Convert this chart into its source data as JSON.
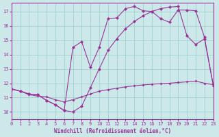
{
  "bg_color": "#cce8e8",
  "grid_color": "#99cccc",
  "line_color": "#993399",
  "xlabel": "Windchill (Refroidissement éolien,°C)",
  "xlim": [
    0,
    23
  ],
  "ylim": [
    9.5,
    17.6
  ],
  "yticks": [
    10,
    11,
    12,
    13,
    14,
    15,
    16,
    17
  ],
  "xticks": [
    0,
    1,
    2,
    3,
    4,
    5,
    6,
    7,
    8,
    9,
    10,
    11,
    12,
    13,
    14,
    15,
    16,
    17,
    18,
    19,
    20,
    21,
    22,
    23
  ],
  "line1_x": [
    0,
    1,
    2,
    3,
    4,
    5,
    6,
    7,
    8,
    9,
    10,
    11,
    12,
    13,
    14,
    15,
    16,
    17,
    18,
    19,
    20,
    21,
    22,
    23
  ],
  "line1_y": [
    11.6,
    11.45,
    11.2,
    11.1,
    11.05,
    10.85,
    10.7,
    10.85,
    11.05,
    11.25,
    11.45,
    11.55,
    11.65,
    11.75,
    11.82,
    11.88,
    11.93,
    11.97,
    12.0,
    12.05,
    12.1,
    12.15,
    12.0,
    11.9
  ],
  "line2_x": [
    0,
    1,
    2,
    3,
    4,
    5,
    6,
    7,
    8,
    9,
    10,
    11,
    12,
    13,
    14,
    15,
    16,
    17,
    18,
    19,
    20,
    21,
    22,
    23
  ],
  "line2_y": [
    11.6,
    11.45,
    11.25,
    11.2,
    10.8,
    10.5,
    10.1,
    14.5,
    14.9,
    13.1,
    14.5,
    16.5,
    16.55,
    17.2,
    17.35,
    17.05,
    17.0,
    16.5,
    16.25,
    17.1,
    17.1,
    17.05,
    15.2,
    11.85
  ],
  "line3_x": [
    0,
    1,
    2,
    3,
    4,
    5,
    6,
    7,
    8,
    9,
    10,
    11,
    12,
    13,
    14,
    15,
    16,
    17,
    18,
    19,
    20,
    21,
    22,
    23
  ],
  "line3_y": [
    11.6,
    11.45,
    11.25,
    11.2,
    10.8,
    10.5,
    10.1,
    10.0,
    10.4,
    11.7,
    13.0,
    14.3,
    15.1,
    15.8,
    16.3,
    16.7,
    17.0,
    17.2,
    17.3,
    17.35,
    15.3,
    14.7,
    15.1,
    11.85
  ]
}
